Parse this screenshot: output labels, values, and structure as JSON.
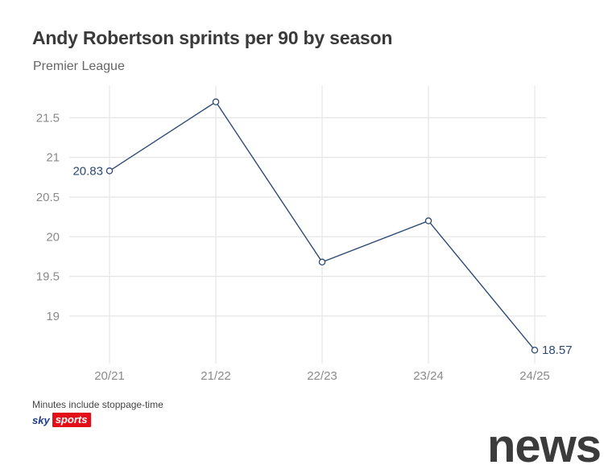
{
  "header": {
    "title": "Andy Robertson sprints per 90 by season",
    "subtitle": "Premier League"
  },
  "footer": {
    "note": "Minutes include stoppage-time",
    "brand_sky": "sky",
    "brand_sports": "sports",
    "brand_colors": {
      "sky": "#1e3a8a",
      "sports": "#e3101a"
    }
  },
  "watermark": "news",
  "chart_data": {
    "type": "line",
    "title": "Andy Robertson sprints per 90 by season",
    "subtitle": "Premier League",
    "xlabel": "",
    "ylabel": "",
    "categories": [
      "20/21",
      "21/22",
      "22/23",
      "23/24",
      "24/25"
    ],
    "series": [
      {
        "values": [
          20.83,
          21.7,
          19.68,
          20.2,
          18.57
        ],
        "color": "#2d4a73"
      }
    ],
    "data_labels": [
      {
        "index": 0,
        "text": "20.83",
        "side": "left"
      },
      {
        "index": 4,
        "text": "18.57",
        "side": "right"
      }
    ],
    "yticks": [
      19,
      19.5,
      20,
      20.5,
      21,
      21.5
    ],
    "ylim": [
      18.4,
      21.95
    ],
    "grid": true,
    "colors": {
      "line": "#2d4a73",
      "grid": "#e6e6e6",
      "tick": "#8a8a8a"
    }
  }
}
